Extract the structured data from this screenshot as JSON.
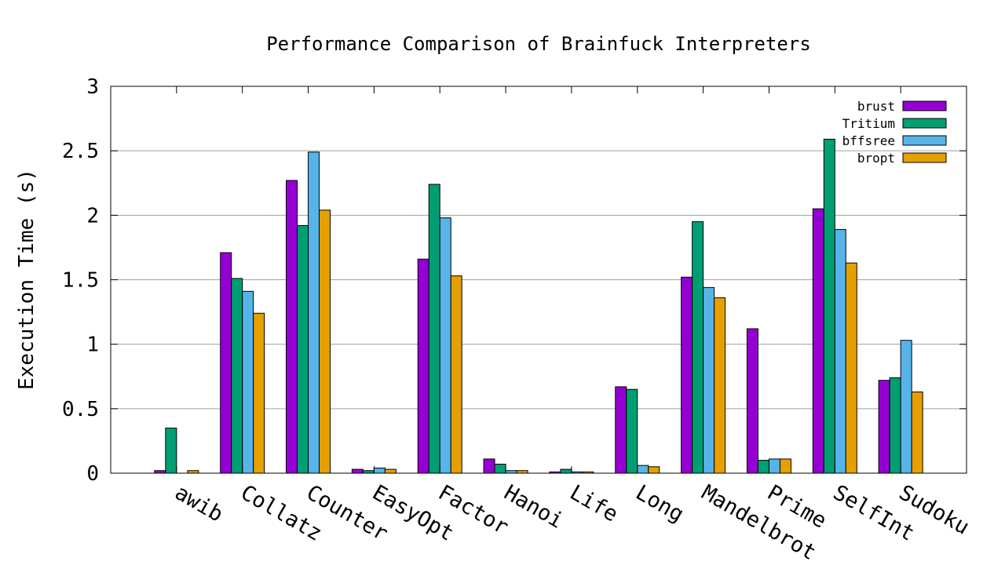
{
  "chart_data": {
    "type": "bar",
    "title": "Performance Comparison of Brainfuck Interpreters",
    "xlabel": "",
    "ylabel": "Execution Time (s)",
    "ylim": [
      0,
      3
    ],
    "yticks": [
      "0",
      "0.5",
      "1",
      "1.5",
      "2",
      "2.5",
      "3"
    ],
    "grid": true,
    "legend": "top-right",
    "categories": [
      "awib",
      "Collatz",
      "Counter",
      "EasyOpt",
      "Factor",
      "Hanoi",
      "Life",
      "Long",
      "Mandelbrot",
      "Prime",
      "SelfInt",
      "Sudoku"
    ],
    "series": [
      {
        "name": "brust",
        "color": "#9400d3",
        "values": [
          0.02,
          1.71,
          2.27,
          0.03,
          1.66,
          0.11,
          0.01,
          0.67,
          1.52,
          1.12,
          2.05,
          0.72
        ]
      },
      {
        "name": "Tritium",
        "color": "#009e73",
        "values": [
          0.35,
          1.51,
          1.92,
          0.02,
          2.24,
          0.07,
          0.03,
          0.65,
          1.95,
          0.1,
          2.59,
          0.74
        ]
      },
      {
        "name": "bffsree",
        "color": "#56b4e9",
        "values": [
          0.0,
          1.41,
          2.49,
          0.04,
          1.98,
          0.02,
          0.01,
          0.06,
          1.44,
          0.11,
          1.89,
          1.03
        ]
      },
      {
        "name": "bropt",
        "color": "#e69f00",
        "values": [
          0.02,
          1.24,
          2.04,
          0.03,
          1.53,
          0.02,
          0.01,
          0.05,
          1.36,
          0.11,
          1.63,
          0.63
        ]
      }
    ]
  }
}
